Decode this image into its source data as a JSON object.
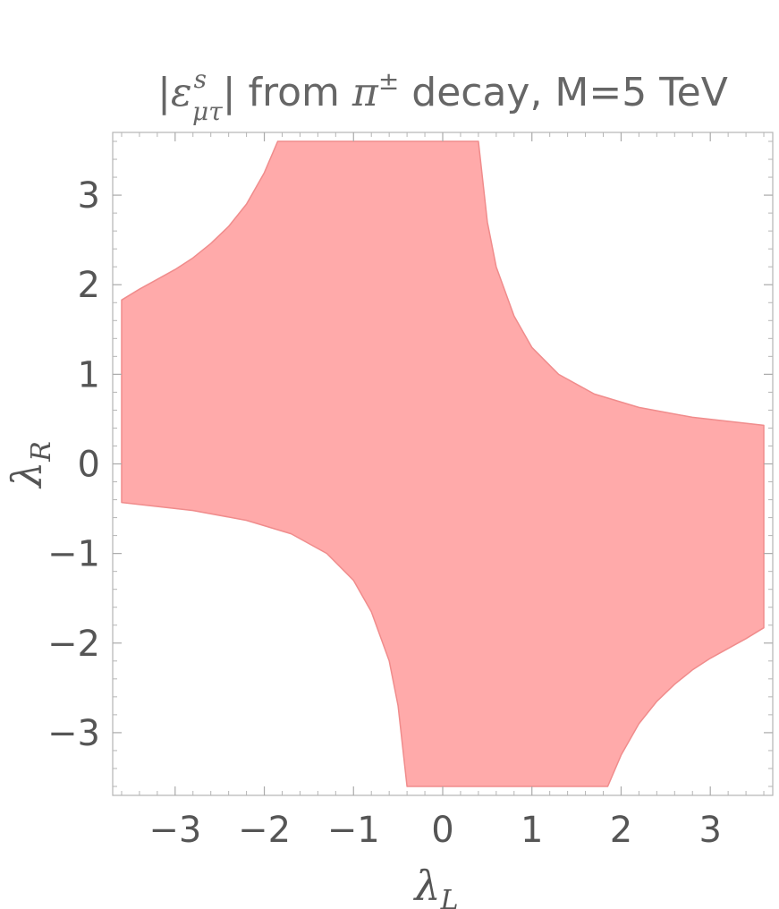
{
  "chart_data": {
    "type": "region",
    "title": {
      "open_bar": "|",
      "symbol": "ε",
      "superscript": "s",
      "subscript": "μτ",
      "close_bar": "|",
      "rest_before_pi": " from ",
      "pi": "π",
      "pi_sup": "±",
      "rest_after_pi": " decay, M=5 TeV"
    },
    "xlabel": {
      "symbol": "λ",
      "sub": "L"
    },
    "ylabel": {
      "symbol": "λ",
      "sub": "R"
    },
    "xlim": [
      -3.7,
      3.7
    ],
    "ylim": [
      -3.7,
      3.7
    ],
    "xticks": [
      -3,
      -2,
      -1,
      0,
      1,
      2,
      3
    ],
    "yticks": [
      -3,
      -2,
      -1,
      0,
      1,
      2,
      3
    ],
    "xtick_labels": [
      "−3",
      "−2",
      "−1",
      "0",
      "1",
      "2",
      "3"
    ],
    "ytick_labels": [
      "−3",
      "−2",
      "−1",
      "0",
      "1",
      "2",
      "3"
    ],
    "minor_tick_step": 0.2,
    "frame": true,
    "grid": false,
    "region": {
      "description_color": "#ffaaaa",
      "fill_color": "#ffaaaa",
      "edge_color": "#f08c8c",
      "boundary": [
        [
          -3.6,
          1.83
        ],
        [
          -3.4,
          1.95
        ],
        [
          -3.2,
          2.06
        ],
        [
          -3.0,
          2.17
        ],
        [
          -2.8,
          2.3
        ],
        [
          -2.6,
          2.46
        ],
        [
          -2.4,
          2.65
        ],
        [
          -2.2,
          2.9
        ],
        [
          -2.0,
          3.25
        ],
        [
          -1.85,
          3.6
        ],
        [
          0.4,
          3.6
        ],
        [
          0.5,
          2.7
        ],
        [
          0.6,
          2.2
        ],
        [
          0.8,
          1.65
        ],
        [
          1.0,
          1.3
        ],
        [
          1.3,
          1.0
        ],
        [
          1.7,
          0.78
        ],
        [
          2.2,
          0.63
        ],
        [
          2.8,
          0.52
        ],
        [
          3.6,
          0.43
        ],
        [
          3.6,
          -1.83
        ],
        [
          3.4,
          -1.95
        ],
        [
          3.2,
          -2.06
        ],
        [
          3.0,
          -2.17
        ],
        [
          2.8,
          -2.3
        ],
        [
          2.6,
          -2.46
        ],
        [
          2.4,
          -2.65
        ],
        [
          2.2,
          -2.9
        ],
        [
          2.0,
          -3.25
        ],
        [
          1.85,
          -3.6
        ],
        [
          -0.4,
          -3.6
        ],
        [
          -0.5,
          -2.7
        ],
        [
          -0.6,
          -2.2
        ],
        [
          -0.8,
          -1.65
        ],
        [
          -1.0,
          -1.3
        ],
        [
          -1.3,
          -1.0
        ],
        [
          -1.7,
          -0.78
        ],
        [
          -2.2,
          -0.63
        ],
        [
          -2.8,
          -0.52
        ],
        [
          -3.6,
          -0.43
        ]
      ]
    }
  }
}
